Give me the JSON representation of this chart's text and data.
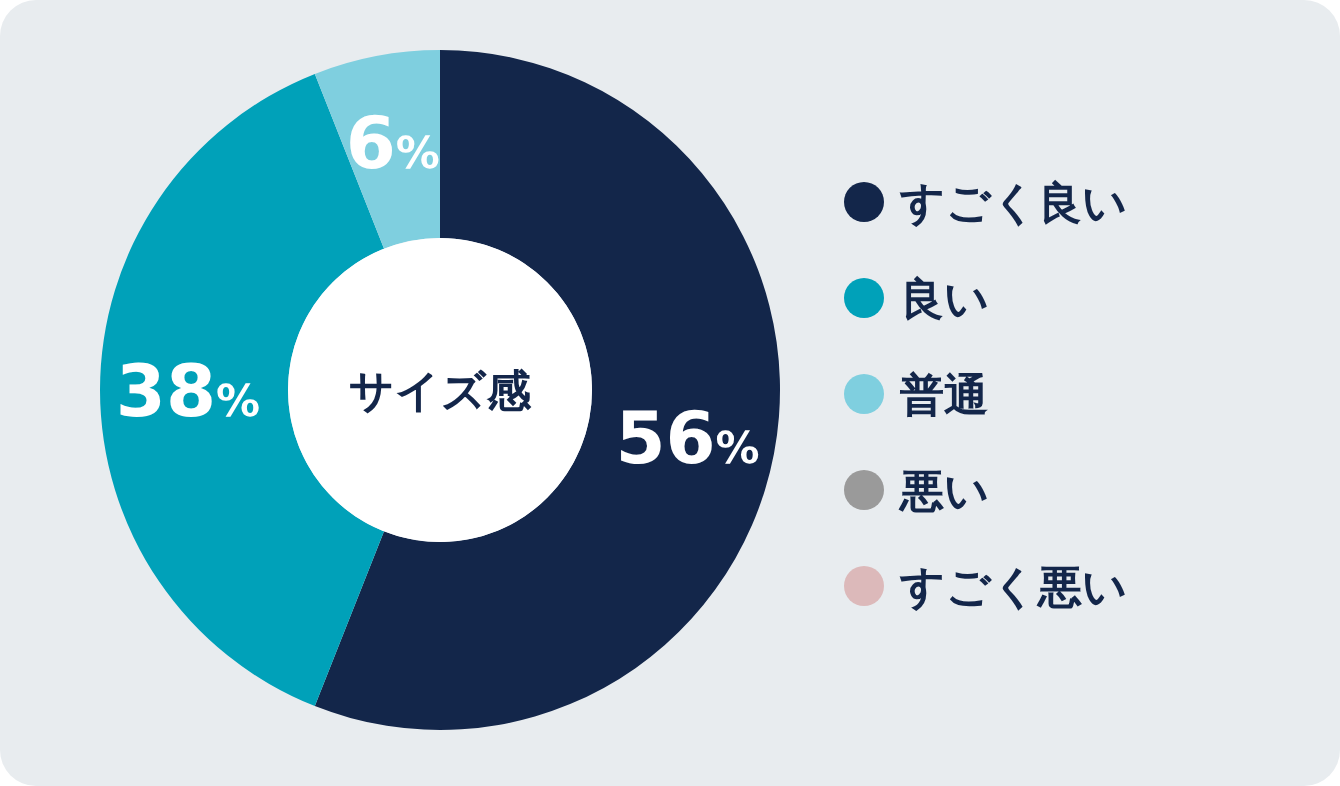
{
  "chart_data": {
    "type": "donut",
    "title": "サイズ感",
    "legend": "right",
    "categories": [
      "すごく良い",
      "良い",
      "普通",
      "悪い",
      "すごく悪い"
    ],
    "values": [
      56,
      38,
      6,
      0,
      0
    ],
    "colors": [
      "#13264a",
      "#00a1b9",
      "#7fcfdf",
      "#9a9a9a",
      "#dcb9ba"
    ],
    "value_labels": [
      "56%",
      "38%",
      "6%",
      null,
      null
    ]
  }
}
